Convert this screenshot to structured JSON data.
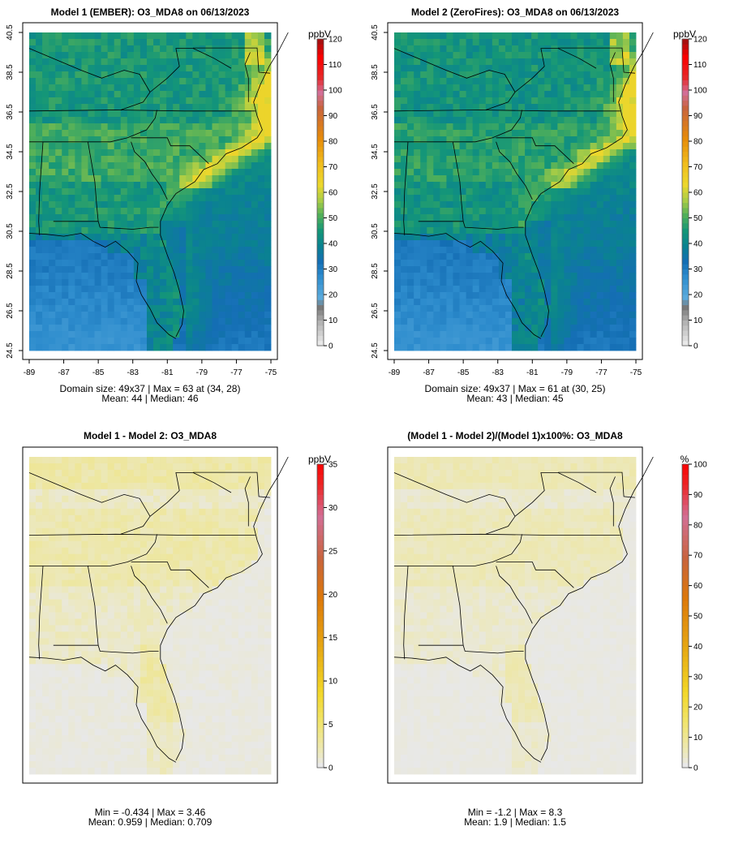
{
  "chart_data": [
    {
      "type": "heatmap",
      "title": "Model 1 (EMBER): O3_MDA8 on 06/13/2023",
      "xticks": [
        "-89",
        "-87",
        "-85",
        "-83",
        "-81",
        "-79",
        "-77",
        "-75"
      ],
      "yticks": [
        "24.5",
        "26.5",
        "28.5",
        "30.5",
        "32.5",
        "34.5",
        "36.5",
        "38.5",
        "40.5"
      ],
      "xlim": [
        -89,
        -75
      ],
      "ylim": [
        24.5,
        40.5
      ],
      "colorbar": {
        "unit": "ppbV",
        "min": 0,
        "max": 120,
        "ticks": [
          "0",
          "10",
          "20",
          "30",
          "40",
          "50",
          "60",
          "70",
          "80",
          "90",
          "100",
          "110",
          "120"
        ]
      },
      "field": {
        "dims": [
          37,
          49
        ],
        "base": 40,
        "coast": 8,
        "plume": 20,
        "plume_lat": 7.25,
        "plume_width": 1.2,
        "inland": 4
      },
      "stats": {
        "line1": "Domain size: 49x37 | Max = 63 at (34, 28)",
        "line2": "Mean: 44 |  Median: 46"
      }
    },
    {
      "type": "heatmap",
      "title": "Model 2 (ZeroFires): O3_MDA8 on 06/13/2023",
      "xticks": [
        "-89",
        "-87",
        "-85",
        "-83",
        "-81",
        "-79",
        "-77",
        "-75"
      ],
      "yticks": [
        "24.5",
        "26.5",
        "28.5",
        "30.5",
        "32.5",
        "34.5",
        "36.5",
        "38.5",
        "40.5"
      ],
      "xlim": [
        -89,
        -75
      ],
      "ylim": [
        24.5,
        40.5
      ],
      "colorbar": {
        "unit": "ppbV",
        "min": 0,
        "max": 120,
        "ticks": [
          "0",
          "10",
          "20",
          "30",
          "40",
          "50",
          "60",
          "70",
          "80",
          "90",
          "100",
          "110",
          "120"
        ]
      },
      "field": {
        "dims": [
          37,
          49
        ],
        "base": 39,
        "coast": 8,
        "plume": 19,
        "plume_lat": 7.25,
        "plume_width": 1.2,
        "inland": 3
      },
      "stats": {
        "line1": "Domain size: 49x37 | Max = 61 at (30, 25)",
        "line2": "Mean: 43 |  Median: 45"
      }
    },
    {
      "type": "heatmap",
      "title": "Model 1 - Model 2: O3_MDA8",
      "colorbar": {
        "unit": "ppbV",
        "min": 0,
        "max": 35,
        "ticks": [
          "0",
          "5",
          "10",
          "15",
          "20",
          "25",
          "30",
          "35"
        ]
      },
      "field": {
        "min": -0.434,
        "max": 3.46,
        "mean": 0.959,
        "median": 0.709
      },
      "stats": {
        "line1": "Min = -0.434 | Max = 3.46",
        "line2": "Mean: 0.959 |  Median: 0.709"
      }
    },
    {
      "type": "heatmap",
      "title": "(Model 1 - Model 2)/(Model 1)x100%: O3_MDA8",
      "colorbar": {
        "unit": "%",
        "min": 0,
        "max": 100,
        "ticks": [
          "0",
          "10",
          "20",
          "30",
          "40",
          "50",
          "60",
          "70",
          "80",
          "90",
          "100"
        ]
      },
      "field": {
        "min": -1.2,
        "max": 8.3,
        "mean": 1.9,
        "median": 1.5
      },
      "stats": {
        "line1": "Min = -1.2 | Max = 8.3",
        "line2": "Mean: 1.9 |  Median: 1.5"
      }
    }
  ]
}
